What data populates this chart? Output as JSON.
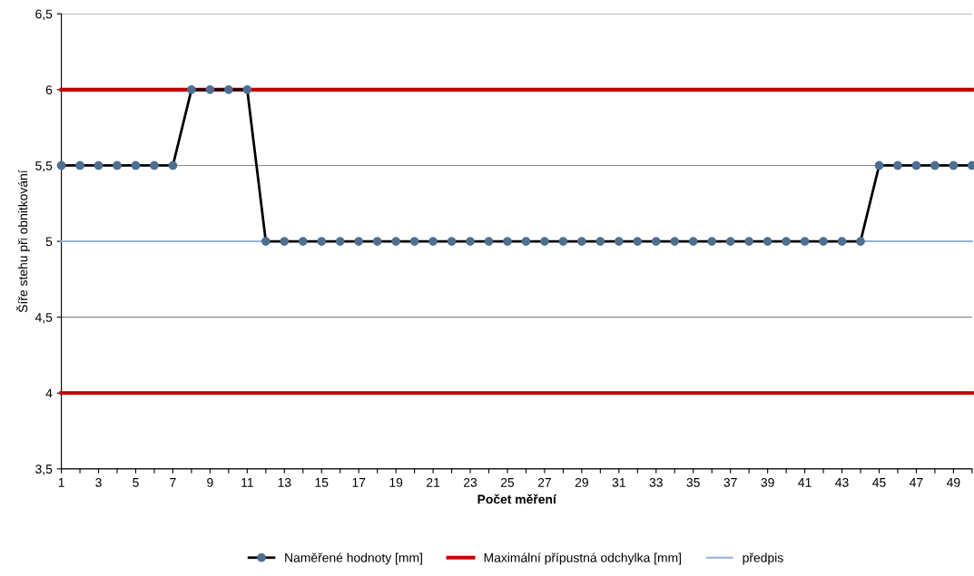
{
  "chart_data": {
    "type": "line",
    "xlabel": "Počet měření",
    "ylabel": "Šíře stehu při obnitkování",
    "categories": [
      "1",
      null,
      "3",
      null,
      "5",
      null,
      "7",
      null,
      "9",
      null,
      "11",
      null,
      "13",
      null,
      "15",
      null,
      "17",
      null,
      "19",
      null,
      "21",
      null,
      "23",
      null,
      "25",
      null,
      "27",
      null,
      "29",
      null,
      "31",
      null,
      "33",
      null,
      "35",
      null,
      "37",
      null,
      "39",
      null,
      "41",
      null,
      "43",
      null,
      "45",
      null,
      "47",
      null,
      "49",
      null
    ],
    "series": [
      {
        "name": "Naměřené hodnoty [mm]",
        "color": "#000000",
        "marker": "circle",
        "values": [
          5.5,
          5.5,
          5.5,
          5.5,
          5.5,
          5.5,
          5.5,
          6,
          6,
          6,
          6,
          5,
          5,
          5,
          5,
          5,
          5,
          5,
          5,
          5,
          5,
          5,
          5,
          5,
          5,
          5,
          5,
          5,
          5,
          5,
          5,
          5,
          5,
          5,
          5,
          5,
          5,
          5,
          5,
          5,
          5,
          5,
          5,
          5,
          5.5,
          5.5,
          5.5,
          5.5,
          5.5,
          5.5
        ]
      },
      {
        "name": "Maximální přípustná odchylka [mm]",
        "color": "#c00000",
        "values": [
          6,
          6,
          6,
          6,
          6,
          6,
          6,
          6,
          6,
          6,
          6,
          6,
          6,
          6,
          6,
          6,
          6,
          6,
          6,
          6,
          6,
          6,
          6,
          6,
          6,
          6,
          6,
          6,
          6,
          6,
          6,
          6,
          6,
          6,
          6,
          6,
          6,
          6,
          6,
          6,
          6,
          6,
          6,
          6,
          6,
          6,
          6,
          6,
          6,
          6
        ]
      },
      {
        "color": "#c00000",
        "values": [
          4,
          4,
          4,
          4,
          4,
          4,
          4,
          4,
          4,
          4,
          4,
          4,
          4,
          4,
          4,
          4,
          4,
          4,
          4,
          4,
          4,
          4,
          4,
          4,
          4,
          4,
          4,
          4,
          4,
          4,
          4,
          4,
          4,
          4,
          4,
          4,
          4,
          4,
          4,
          4,
          4,
          4,
          4,
          4,
          4,
          4,
          4,
          4,
          4,
          4
        ]
      },
      {
        "name": "předpis",
        "color": "#95b3d7",
        "values": [
          5,
          5,
          5,
          5,
          5,
          5,
          5,
          5,
          5,
          5,
          5,
          5,
          5,
          5,
          5,
          5,
          5,
          5,
          5,
          5,
          5,
          5,
          5,
          5,
          5,
          5,
          5,
          5,
          5,
          5,
          5,
          5,
          5,
          5,
          5,
          5,
          5,
          5,
          5,
          5,
          5,
          5,
          5,
          5,
          5,
          5,
          5,
          5,
          5,
          5
        ]
      }
    ],
    "ylim": [
      3.5,
      6.5
    ],
    "yticks": [
      {
        "value": 3.5,
        "label": "3,5"
      },
      4,
      {
        "value": 4.5,
        "label": "4,5"
      },
      5,
      {
        "value": 5.5,
        "label": "5,5"
      },
      6,
      {
        "value": 6.5,
        "label": "6,5"
      }
    ],
    "grid": "y",
    "legend": "bottom",
    "line_style": "solid"
  }
}
